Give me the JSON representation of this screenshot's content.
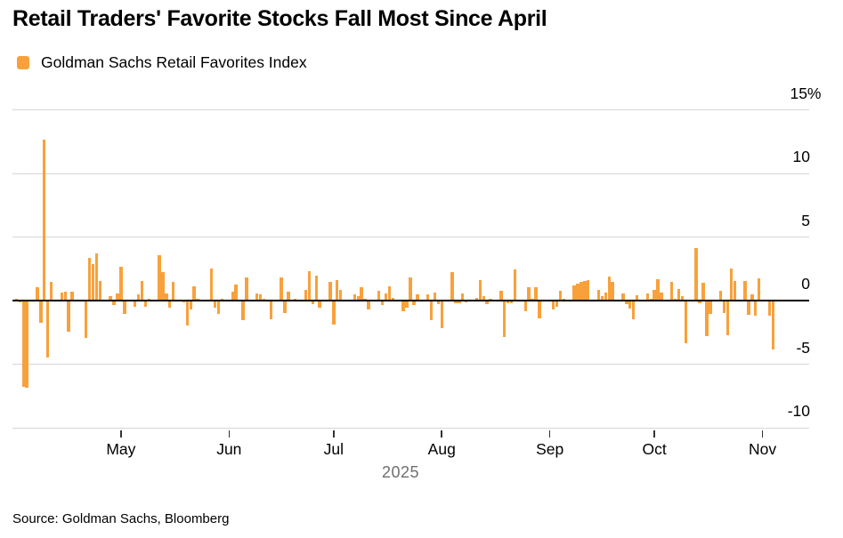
{
  "header": {
    "title": "Retail Traders' Favorite Stocks Fall Most Since April",
    "legend_label": "Goldman Sachs Retail Favorites Index"
  },
  "footer": {
    "source": "Source: Goldman Sachs, Bloomberg"
  },
  "colors": {
    "accent_orange": "#F8A13C",
    "gridline_gray": "#D6D6D6",
    "zero_line_black": "#000000",
    "year_gray": "#6F6F6F"
  },
  "chart_data": {
    "type": "bar",
    "title": "Retail Traders' Favorite Stocks Fall Most Since April",
    "series_name": "Goldman Sachs Retail Favorites Index",
    "unit": "percent daily change",
    "ylim": [
      -10,
      15
    ],
    "grid": "horizontal",
    "legend_position": "top-left",
    "yticks": [
      {
        "value": 15,
        "label": "15",
        "suffix": "%"
      },
      {
        "value": 10,
        "label": "10",
        "suffix": ""
      },
      {
        "value": 5,
        "label": "5",
        "suffix": ""
      },
      {
        "value": 0,
        "label": "0",
        "suffix": ""
      },
      {
        "value": -5,
        "label": "-5",
        "suffix": ""
      },
      {
        "value": -10,
        "label": "-10",
        "suffix": ""
      }
    ],
    "xticks": [
      {
        "label": "May",
        "date": "2025-05-01"
      },
      {
        "label": "Jun",
        "date": "2025-06-01"
      },
      {
        "label": "Jul",
        "date": "2025-07-01"
      },
      {
        "label": "Aug",
        "date": "2025-08-01"
      },
      {
        "label": "Sep",
        "date": "2025-09-01"
      },
      {
        "label": "Oct",
        "date": "2025-10-01"
      },
      {
        "label": "Nov",
        "date": "2025-11-01"
      }
    ],
    "year_label": "2025",
    "points": [
      [
        "2025-04-01",
        0.1
      ],
      [
        "2025-04-02",
        -0.15
      ],
      [
        "2025-04-03",
        -6.8
      ],
      [
        "2025-04-04",
        -6.9
      ],
      [
        "2025-04-07",
        1.0
      ],
      [
        "2025-04-08",
        -1.8
      ],
      [
        "2025-04-09",
        12.6
      ],
      [
        "2025-04-10",
        -4.5
      ],
      [
        "2025-04-11",
        1.4
      ],
      [
        "2025-04-14",
        0.6
      ],
      [
        "2025-04-15",
        0.65
      ],
      [
        "2025-04-16",
        -2.45
      ],
      [
        "2025-04-17",
        0.65
      ],
      [
        "2025-04-21",
        -3.0
      ],
      [
        "2025-04-22",
        3.3
      ],
      [
        "2025-04-23",
        2.8
      ],
      [
        "2025-04-24",
        3.7
      ],
      [
        "2025-04-25",
        1.5
      ],
      [
        "2025-04-28",
        0.3
      ],
      [
        "2025-04-29",
        -0.4
      ],
      [
        "2025-04-30",
        0.5
      ],
      [
        "2025-05-01",
        2.6
      ],
      [
        "2025-05-02",
        -1.1
      ],
      [
        "2025-05-05",
        -0.5
      ],
      [
        "2025-05-06",
        0.45
      ],
      [
        "2025-05-07",
        1.5
      ],
      [
        "2025-05-08",
        -0.55
      ],
      [
        "2025-05-09",
        0.1
      ],
      [
        "2025-05-12",
        3.5
      ],
      [
        "2025-05-13",
        2.2
      ],
      [
        "2025-05-14",
        0.5
      ],
      [
        "2025-05-15",
        -0.6
      ],
      [
        "2025-05-16",
        1.4
      ],
      [
        "2025-05-19",
        -0.15
      ],
      [
        "2025-05-20",
        -2.0
      ],
      [
        "2025-05-21",
        -0.7
      ],
      [
        "2025-05-22",
        1.1
      ],
      [
        "2025-05-23",
        0.1
      ],
      [
        "2025-05-27",
        2.5
      ],
      [
        "2025-05-28",
        -0.6
      ],
      [
        "2025-05-29",
        -1.1
      ],
      [
        "2025-05-30",
        0.1
      ],
      [
        "2025-06-02",
        0.67
      ],
      [
        "2025-06-03",
        1.2
      ],
      [
        "2025-06-04",
        -0.1
      ],
      [
        "2025-06-05",
        -1.6
      ],
      [
        "2025-06-06",
        1.8
      ],
      [
        "2025-06-09",
        0.5
      ],
      [
        "2025-06-10",
        0.45
      ],
      [
        "2025-06-11",
        0.1
      ],
      [
        "2025-06-12",
        -0.1
      ],
      [
        "2025-06-13",
        -1.5
      ],
      [
        "2025-06-16",
        1.8
      ],
      [
        "2025-06-17",
        -1.0
      ],
      [
        "2025-06-18",
        0.67
      ],
      [
        "2025-06-20",
        0.1
      ],
      [
        "2025-06-23",
        0.8
      ],
      [
        "2025-06-24",
        2.3
      ],
      [
        "2025-06-25",
        -0.3
      ],
      [
        "2025-06-26",
        1.9
      ],
      [
        "2025-06-27",
        -0.6
      ],
      [
        "2025-06-30",
        1.4
      ],
      [
        "2025-07-01",
        -1.9
      ],
      [
        "2025-07-02",
        1.55
      ],
      [
        "2025-07-03",
        0.8
      ],
      [
        "2025-07-07",
        0.45
      ],
      [
        "2025-07-08",
        0.3
      ],
      [
        "2025-07-09",
        1.0
      ],
      [
        "2025-07-10",
        0.1
      ],
      [
        "2025-07-11",
        -0.7
      ],
      [
        "2025-07-14",
        0.75
      ],
      [
        "2025-07-15",
        -0.4
      ],
      [
        "2025-07-16",
        0.55
      ],
      [
        "2025-07-17",
        1.1
      ],
      [
        "2025-07-18",
        0.2
      ],
      [
        "2025-07-21",
        -0.85
      ],
      [
        "2025-07-22",
        -0.6
      ],
      [
        "2025-07-23",
        1.8
      ],
      [
        "2025-07-24",
        -0.4
      ],
      [
        "2025-07-25",
        0.45
      ],
      [
        "2025-07-28",
        0.47
      ],
      [
        "2025-07-29",
        -1.6
      ],
      [
        "2025-07-30",
        0.6
      ],
      [
        "2025-07-31",
        -0.3
      ],
      [
        "2025-08-01",
        -2.2
      ],
      [
        "2025-08-04",
        2.2
      ],
      [
        "2025-08-05",
        -0.25
      ],
      [
        "2025-08-06",
        -0.25
      ],
      [
        "2025-08-07",
        0.55
      ],
      [
        "2025-08-08",
        -0.15
      ],
      [
        "2025-08-11",
        0.15
      ],
      [
        "2025-08-12",
        1.55
      ],
      [
        "2025-08-13",
        0.3
      ],
      [
        "2025-08-14",
        -0.3
      ],
      [
        "2025-08-15",
        0.1
      ],
      [
        "2025-08-18",
        0.7
      ],
      [
        "2025-08-19",
        -2.9
      ],
      [
        "2025-08-20",
        -0.25
      ],
      [
        "2025-08-21",
        -0.25
      ],
      [
        "2025-08-22",
        2.4
      ],
      [
        "2025-08-25",
        -0.85
      ],
      [
        "2025-08-26",
        1.0
      ],
      [
        "2025-08-27",
        0.1
      ],
      [
        "2025-08-28",
        1.0
      ],
      [
        "2025-08-29",
        -1.4
      ],
      [
        "2025-09-02",
        -0.7
      ],
      [
        "2025-09-03",
        -0.5
      ],
      [
        "2025-09-04",
        0.7
      ],
      [
        "2025-09-05",
        0.1
      ],
      [
        "2025-09-08",
        1.15
      ],
      [
        "2025-09-09",
        1.3
      ],
      [
        "2025-09-10",
        1.4
      ],
      [
        "2025-09-11",
        1.5
      ],
      [
        "2025-09-12",
        1.55
      ],
      [
        "2025-09-15",
        0.8
      ],
      [
        "2025-09-16",
        0.3
      ],
      [
        "2025-09-17",
        0.6
      ],
      [
        "2025-09-18",
        1.85
      ],
      [
        "2025-09-19",
        1.4
      ],
      [
        "2025-09-22",
        0.55
      ],
      [
        "2025-09-23",
        -0.3
      ],
      [
        "2025-09-24",
        -0.65
      ],
      [
        "2025-09-25",
        -1.5
      ],
      [
        "2025-09-26",
        0.35
      ],
      [
        "2025-09-29",
        0.5
      ],
      [
        "2025-09-30",
        0.1
      ],
      [
        "2025-10-01",
        0.8
      ],
      [
        "2025-10-02",
        1.65
      ],
      [
        "2025-10-03",
        0.6
      ],
      [
        "2025-10-06",
        1.45
      ],
      [
        "2025-10-07",
        0.1
      ],
      [
        "2025-10-08",
        0.85
      ],
      [
        "2025-10-09",
        0.3
      ],
      [
        "2025-10-10",
        -3.4
      ],
      [
        "2025-10-13",
        4.1
      ],
      [
        "2025-10-14",
        -0.25
      ],
      [
        "2025-10-15",
        1.35
      ],
      [
        "2025-10-16",
        -2.85
      ],
      [
        "2025-10-17",
        -1.1
      ],
      [
        "2025-10-20",
        0.75
      ],
      [
        "2025-10-21",
        -1.0
      ],
      [
        "2025-10-22",
        -2.75
      ],
      [
        "2025-10-23",
        2.45
      ],
      [
        "2025-10-24",
        1.5
      ],
      [
        "2025-10-27",
        1.5
      ],
      [
        "2025-10-28",
        -1.15
      ],
      [
        "2025-10-29",
        0.45
      ],
      [
        "2025-10-30",
        -1.25
      ],
      [
        "2025-10-31",
        1.7
      ],
      [
        "2025-11-03",
        -1.25
      ],
      [
        "2025-11-04",
        -3.9
      ]
    ]
  }
}
